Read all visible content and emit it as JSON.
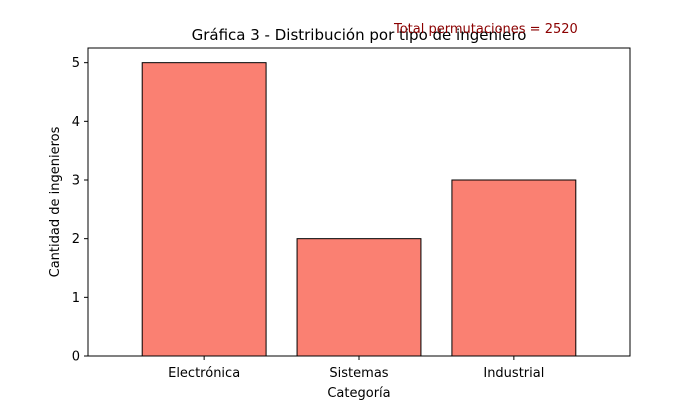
{
  "chart_data": {
    "type": "bar",
    "title": "Gráfica 3 - Distribución por tipo de ingeniero",
    "xlabel": "Categoría",
    "ylabel": "Cantidad de ingenieros",
    "categories": [
      "Electrónica",
      "Sistemas",
      "Industrial"
    ],
    "values": [
      5,
      2,
      3
    ],
    "ylim": [
      0,
      5.25
    ],
    "yticks": [
      "0",
      "1",
      "2",
      "3",
      "4",
      "5"
    ],
    "grid": false,
    "bar_color": "#fa8072",
    "bar_edge_color": "#000000",
    "annotation": {
      "text": "Total permutaciones = 2520",
      "color": "#8b0000"
    }
  }
}
